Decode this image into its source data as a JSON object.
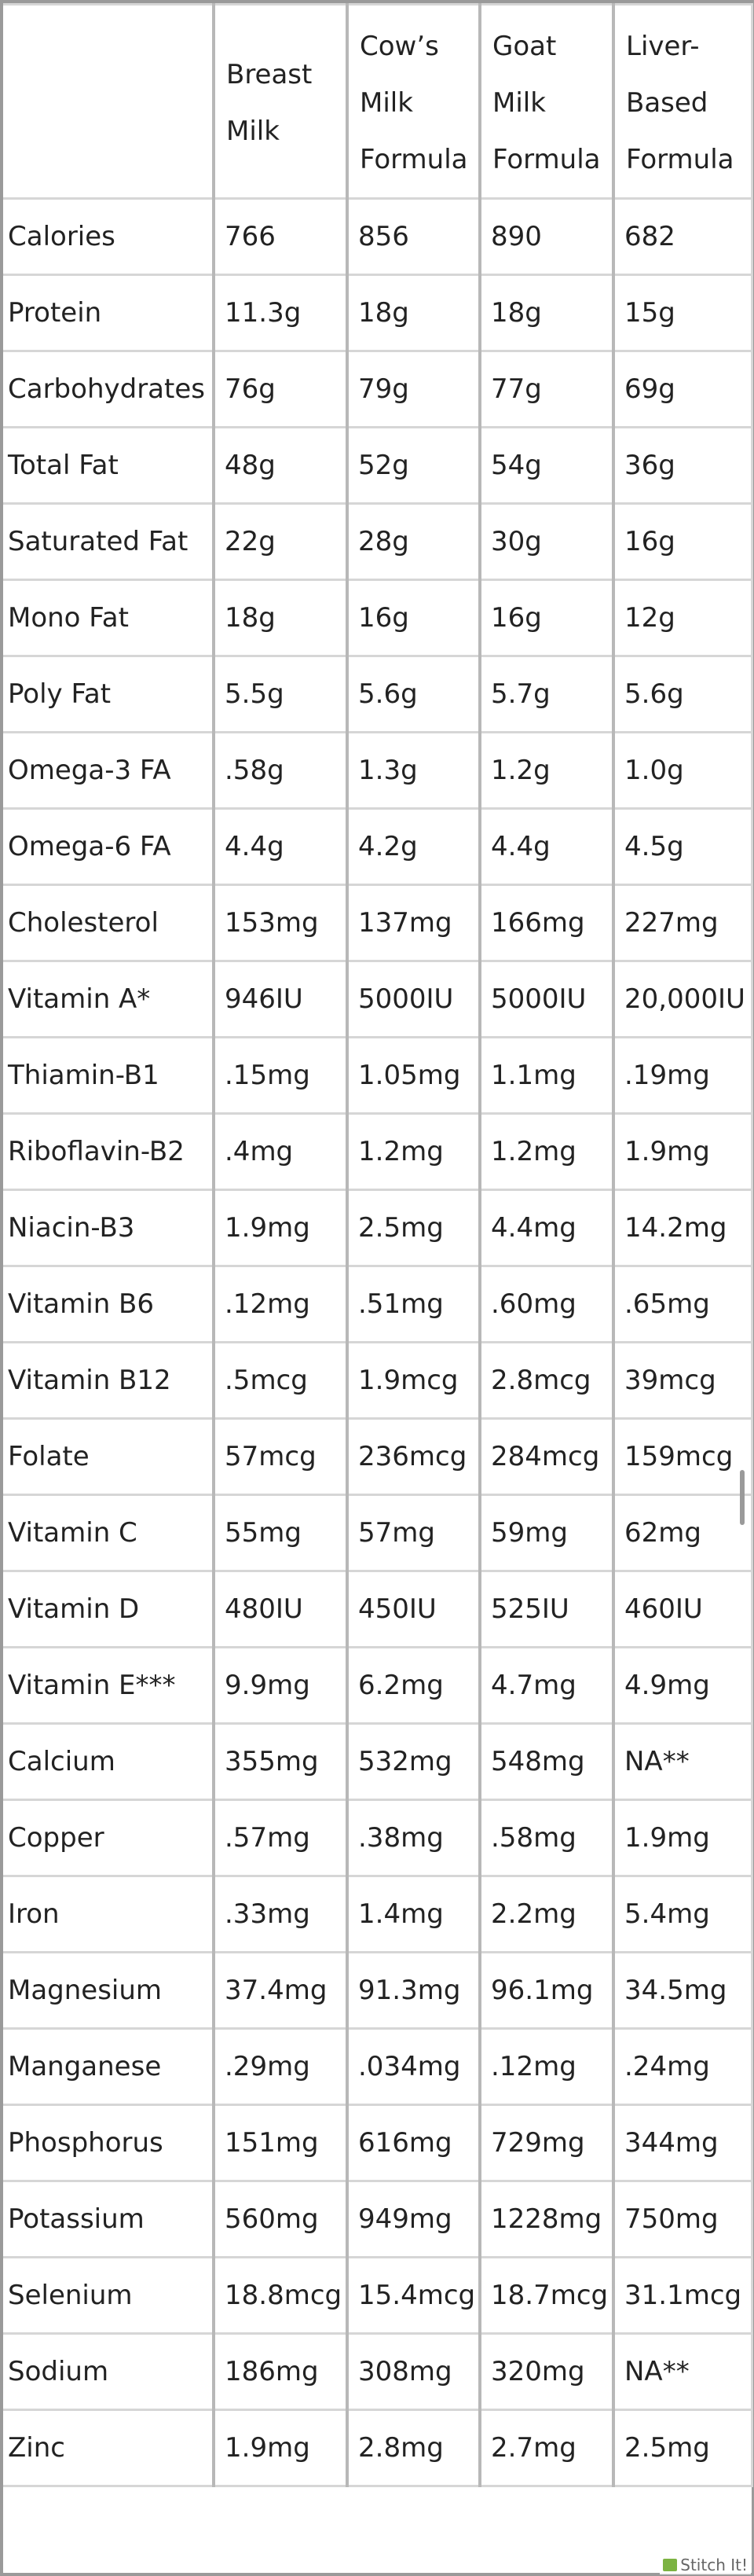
{
  "header": {
    "col0": "",
    "col1": "Breast Milk",
    "col2": "Cow’s Milk Formula",
    "col3": "Goat Milk Formula",
    "col4": "Liver-Based Formula"
  },
  "rows": [
    {
      "label": "Calories",
      "v1": "766",
      "v2": "856",
      "v3": "890",
      "v4": "682"
    },
    {
      "label": "Protein",
      "v1": "11.3g",
      "v2": "18g",
      "v3": "18g",
      "v4": "15g"
    },
    {
      "label": "Carbohydrates",
      "v1": "76g",
      "v2": "79g",
      "v3": "77g",
      "v4": "69g"
    },
    {
      "label": "Total Fat",
      "v1": "48g",
      "v2": "52g",
      "v3": "54g",
      "v4": "36g"
    },
    {
      "label": "Saturated Fat",
      "v1": "22g",
      "v2": "28g",
      "v3": "30g",
      "v4": "16g"
    },
    {
      "label": "Mono Fat",
      "v1": "18g",
      "v2": "16g",
      "v3": "16g",
      "v4": "12g"
    },
    {
      "label": "Poly Fat",
      "v1": "5.5g",
      "v2": "5.6g",
      "v3": "5.7g",
      "v4": "5.6g"
    },
    {
      "label": "Omega-3 FA",
      "v1": ".58g",
      "v2": "1.3g",
      "v3": "1.2g",
      "v4": "1.0g"
    },
    {
      "label": "Omega-6 FA",
      "v1": "4.4g",
      "v2": "4.2g",
      "v3": "4.4g",
      "v4": "4.5g"
    },
    {
      "label": "Cholesterol",
      "v1": "153mg",
      "v2": "137mg",
      "v3": "166mg",
      "v4": "227mg"
    },
    {
      "label": "Vitamin A*",
      "v1": "946IU",
      "v2": "5000IU",
      "v3": "5000IU",
      "v4": "20,000IU"
    },
    {
      "label": "Thiamin-B1",
      "v1": ".15mg",
      "v2": "1.05mg",
      "v3": "1.1mg",
      "v4": ".19mg"
    },
    {
      "label": "Riboflavin-B2",
      "v1": ".4mg",
      "v2": "1.2mg",
      "v3": "1.2mg",
      "v4": "1.9mg"
    },
    {
      "label": "Niacin-B3",
      "v1": "1.9mg",
      "v2": "2.5mg",
      "v3": "4.4mg",
      "v4": "14.2mg"
    },
    {
      "label": "Vitamin B6",
      "v1": ".12mg",
      "v2": ".51mg",
      "v3": ".60mg",
      "v4": ".65mg"
    },
    {
      "label": "Vitamin B12",
      "v1": ".5mcg",
      "v2": "1.9mcg",
      "v3": "2.8mcg",
      "v4": "39mcg"
    },
    {
      "label": "Folate",
      "v1": "57mcg",
      "v2": "236mcg",
      "v3": "284mcg",
      "v4": "159mcg"
    },
    {
      "label": "Vitamin C",
      "v1": "55mg",
      "v2": "57mg",
      "v3": "59mg",
      "v4": "62mg"
    },
    {
      "label": "Vitamin D",
      "v1": "480IU",
      "v2": "450IU",
      "v3": "525IU",
      "v4": "460IU"
    },
    {
      "label": "Vitamin E***",
      "v1": "9.9mg",
      "v2": "6.2mg",
      "v3": "4.7mg",
      "v4": "4.9mg"
    },
    {
      "label": "Calcium",
      "v1": "355mg",
      "v2": "532mg",
      "v3": "548mg",
      "v4": "NA**"
    },
    {
      "label": "Copper",
      "v1": ".57mg",
      "v2": ".38mg",
      "v3": ".58mg",
      "v4": "1.9mg"
    },
    {
      "label": "Iron",
      "v1": ".33mg",
      "v2": "1.4mg",
      "v3": "2.2mg",
      "v4": "5.4mg"
    },
    {
      "label": "Magnesium",
      "v1": "37.4mg",
      "v2": "91.3mg",
      "v3": "96.1mg",
      "v4": "34.5mg"
    },
    {
      "label": "Manganese",
      "v1": ".29mg",
      "v2": ".034mg",
      "v3": ".12mg",
      "v4": ".24mg"
    },
    {
      "label": "Phosphorus",
      "v1": "151mg",
      "v2": "616mg",
      "v3": "729mg",
      "v4": "344mg"
    },
    {
      "label": "Potassium",
      "v1": "560mg",
      "v2": "949mg",
      "v3": "1228mg",
      "v4": "750mg"
    },
    {
      "label": "Selenium",
      "v1": "18.8mcg",
      "v2": "15.4mcg",
      "v3": "18.7mcg",
      "v4": "31.1mcg"
    },
    {
      "label": "Sodium",
      "v1": "186mg",
      "v2": "308mg",
      "v3": "320mg",
      "v4": "NA**"
    },
    {
      "label": "Zinc",
      "v1": "1.9mg",
      "v2": "2.8mg",
      "v3": "2.7mg",
      "v4": "2.5mg"
    }
  ],
  "watermark": {
    "text": "Stitch It!",
    "icon": "stitch-logo-icon"
  }
}
